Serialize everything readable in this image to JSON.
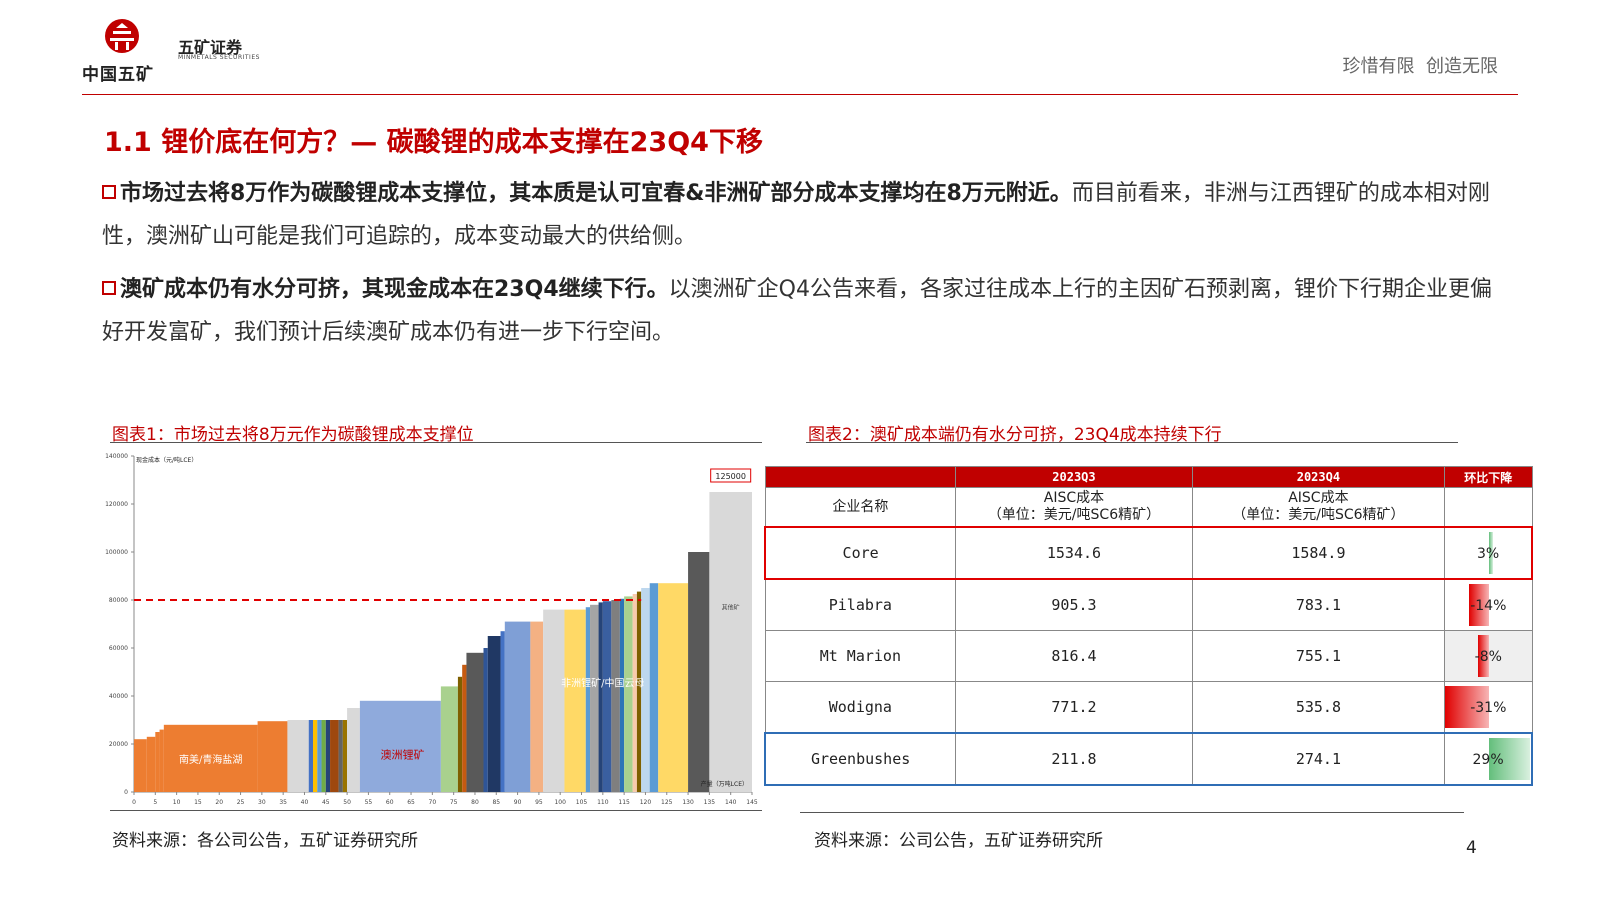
{
  "header": {
    "logo_cn": "中国五矿",
    "brand": "五矿证券",
    "brand_en": "MINMETALS SECURITIES",
    "slogan": "珍惜有限  创造无限",
    "accent_color": "#c00000"
  },
  "title": "1.1 锂价底在何方？— 碳酸锂的成本支撑在23Q4下移",
  "paragraphs": [
    {
      "bold": "市场过去将8万作为碳酸锂成本支撑位，其本质是认可宜春&非洲矿部分成本支撑均在8万元附近。",
      "normal": "而目前看来，非洲与江西锂矿的成本相对刚性，澳洲矿山可能是我们可追踪的，成本变动最大的供给侧。"
    },
    {
      "bold": "澳矿成本仍有水分可挤，其现金成本在23Q4继续下行。",
      "normal": "以澳洲矿企Q4公告来看，各家过往成本上行的主因矿石预剥离，锂价下行期企业更偏好开发富矿，我们预计后续澳矿成本仍有进一步下行空间。"
    }
  ],
  "figure1": {
    "caption": "图表1：市场过去将8万元作为碳酸锂成本支撑位",
    "source": "资料来源：各公司公告，五矿证券研究所"
  },
  "figure2": {
    "caption": "图表2：澳矿成本端仍有水分可挤，23Q4成本持续下行",
    "source": "资料来源：公司公告，五矿证券研究所"
  },
  "page_number": "4",
  "chart_data": {
    "type": "bar",
    "subtype": "cost-curve",
    "ylabel": "现金成本（元/吨LCE）",
    "xlabel": "产量（万吨LCE）",
    "ylim": [
      0,
      140000
    ],
    "yticks": [
      "0",
      "20000",
      "40000",
      "60000",
      "80000",
      "100000",
      "120000",
      "140000"
    ],
    "xlim": [
      0,
      145
    ],
    "xticks": [
      "0",
      "5",
      "10",
      "15",
      "20",
      "25",
      "30",
      "35",
      "40",
      "45",
      "50",
      "55",
      "60",
      "65",
      "70",
      "75",
      "80",
      "85",
      "90",
      "95",
      "100",
      "105",
      "110",
      "115",
      "120",
      "125",
      "130",
      "135",
      "140",
      "145"
    ],
    "reference_line": {
      "value": 80000,
      "color": "#e00000",
      "style": "dashed"
    },
    "top_value_label": "125000",
    "region_labels": [
      "南美/青海盐湖",
      "澳洲锂矿",
      "非洲锂矿/中国云母",
      "非洲锂矿/中国云母",
      "其他矿"
    ],
    "bars": [
      {
        "x0": 0,
        "x1": 3,
        "y": 22000,
        "color": "#ed7d31"
      },
      {
        "x0": 3,
        "x1": 5,
        "y": 23000,
        "color": "#ed7d31"
      },
      {
        "x0": 5,
        "x1": 6,
        "y": 25000,
        "color": "#ed7d31"
      },
      {
        "x0": 6,
        "x1": 7,
        "y": 26000,
        "color": "#ed7d31"
      },
      {
        "x0": 7,
        "x1": 29,
        "y": 28000,
        "color": "#ed7d31"
      },
      {
        "x0": 29,
        "x1": 36,
        "y": 29500,
        "color": "#ed7d31"
      },
      {
        "x0": 36,
        "x1": 41,
        "y": 30000,
        "color": "#d9d9d9"
      },
      {
        "x0": 41,
        "x1": 42,
        "y": 30000,
        "color": "#4472c4"
      },
      {
        "x0": 42,
        "x1": 43,
        "y": 30000,
        "color": "#ffc000"
      },
      {
        "x0": 43,
        "x1": 44,
        "y": 30000,
        "color": "#5b9bd5"
      },
      {
        "x0": 44,
        "x1": 45,
        "y": 30000,
        "color": "#70ad47"
      },
      {
        "x0": 45,
        "x1": 46,
        "y": 30000,
        "color": "#264478"
      },
      {
        "x0": 46,
        "x1": 48,
        "y": 30000,
        "color": "#9e480e"
      },
      {
        "x0": 48,
        "x1": 49,
        "y": 30000,
        "color": "#636363"
      },
      {
        "x0": 49,
        "x1": 50,
        "y": 30000,
        "color": "#997300"
      },
      {
        "x0": 50,
        "x1": 53,
        "y": 35000,
        "color": "#d9d9d9"
      },
      {
        "x0": 53,
        "x1": 72,
        "y": 38000,
        "color": "#8faadc"
      },
      {
        "x0": 72,
        "x1": 76,
        "y": 44000,
        "color": "#a9d18e"
      },
      {
        "x0": 76,
        "x1": 77,
        "y": 48000,
        "color": "#7f6000"
      },
      {
        "x0": 77,
        "x1": 78,
        "y": 53000,
        "color": "#c55a11"
      },
      {
        "x0": 78,
        "x1": 82,
        "y": 58000,
        "color": "#595959"
      },
      {
        "x0": 82,
        "x1": 83,
        "y": 60000,
        "color": "#2f5597"
      },
      {
        "x0": 83,
        "x1": 86,
        "y": 65000,
        "color": "#203864"
      },
      {
        "x0": 86,
        "x1": 87,
        "y": 67000,
        "color": "#4472c4"
      },
      {
        "x0": 87,
        "x1": 93,
        "y": 71000,
        "color": "#7f9fd6"
      },
      {
        "x0": 93,
        "x1": 96,
        "y": 71000,
        "color": "#f4b183"
      },
      {
        "x0": 96,
        "x1": 101,
        "y": 76000,
        "color": "#d9d9d9"
      },
      {
        "x0": 101,
        "x1": 106,
        "y": 76000,
        "color": "#ffd966"
      },
      {
        "x0": 106,
        "x1": 107,
        "y": 77000,
        "color": "#5b9bd5"
      },
      {
        "x0": 107,
        "x1": 109,
        "y": 78000,
        "color": "#a5a5a5"
      },
      {
        "x0": 109,
        "x1": 110,
        "y": 79000,
        "color": "#264478"
      },
      {
        "x0": 110,
        "x1": 112,
        "y": 79500,
        "color": "#3a5fa0"
      },
      {
        "x0": 112,
        "x1": 114,
        "y": 80000,
        "color": "#7f7f7f"
      },
      {
        "x0": 114,
        "x1": 115,
        "y": 80500,
        "color": "#2e75b6"
      },
      {
        "x0": 115,
        "x1": 117,
        "y": 81500,
        "color": "#a9d18e"
      },
      {
        "x0": 117,
        "x1": 118,
        "y": 82500,
        "color": "#f8cbad"
      },
      {
        "x0": 118,
        "x1": 119,
        "y": 83500,
        "color": "#7f6000"
      },
      {
        "x0": 119,
        "x1": 121,
        "y": 85000,
        "color": "#bdd7ee"
      },
      {
        "x0": 121,
        "x1": 123,
        "y": 87000,
        "color": "#5b9bd5"
      },
      {
        "x0": 123,
        "x1": 130,
        "y": 87000,
        "color": "#ffd966"
      },
      {
        "x0": 130,
        "x1": 135,
        "y": 100000,
        "color": "#595959"
      },
      {
        "x0": 135,
        "x1": 145,
        "y": 125000,
        "color": "#d9d9d9"
      }
    ]
  },
  "table": {
    "header_row1": [
      "",
      "2023Q3",
      "2023Q4",
      "环比下降"
    ],
    "header_row2": [
      "企业名称",
      "AISC成本\n（单位：美元/吨SC6精矿）",
      "AISC成本\n（单位：美元/吨SC6精矿）",
      ""
    ],
    "rows": [
      {
        "name": "Core",
        "q3": "1534.6",
        "q4": "1584.9",
        "change": "3%",
        "value": 0.03
      },
      {
        "name": "Pilabra",
        "q3": "905.3",
        "q4": "783.1",
        "change": "-14%",
        "value": -0.14
      },
      {
        "name": "Mt Marion",
        "q3": "816.4",
        "q4": "755.1",
        "change": "-8%",
        "value": -0.08
      },
      {
        "name": "Wodigna",
        "q3": "771.2",
        "q4": "535.8",
        "change": "-31%",
        "value": -0.31
      },
      {
        "name": "Greenbushes",
        "q3": "211.8",
        "q4": "274.1",
        "change": "29%",
        "value": 0.29
      }
    ],
    "colors": {
      "negative": "#e00000",
      "positive": "#63be7b",
      "header_bg": "#c00000"
    }
  }
}
